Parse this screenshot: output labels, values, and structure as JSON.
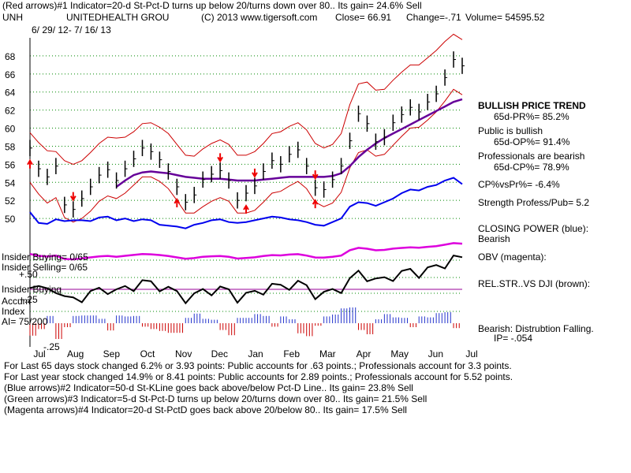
{
  "header": {
    "line1": "(Red arrows)#1 Indicator=20-d St-Pct-D turns up below 20/turns down over 80.. Its gain= 24.6% Sell",
    "symbol": "UNH",
    "company": "UNITEDHEALTH GROU",
    "copyright": "(C) 2013 www.tigersoft.com",
    "close": "Close=  66.91",
    "change": "Change=-.71",
    "volume": "Volume= 54595.52",
    "date_range": "6/ 29/ 12-  7/ 16/ 13"
  },
  "sidebar": {
    "trend_title": "BULLISH PRICE TREND",
    "pr": "65d-PR%= 85.2%",
    "public": "Public is bullish",
    "op": "65d-OP%= 91.4%",
    "professionals": "Professionals are bearish",
    "cp": "65d-CP%= 78.9%",
    "cpvspr": "CP%vsPr%= -6.4%",
    "strength": "Strength Profess/Pub= 5.2",
    "closing_power": "CLOSING POWER (blue):",
    "closing_power_status": "Bearish",
    "obv": "OBV (magenta):",
    "relstr": "REL.STR..VS DJI (brown):",
    "accum": "Bearish: Distrubtion Falling.",
    "ip": "IP= -.054"
  },
  "indicators": {
    "insider_buying": "Insider Buying= 0/65",
    "insider_selling": "Insider Selling= 0/65",
    "plus50": "+.50",
    "insider_buying2": "Insider Buying",
    "accum": "Accum",
    "plus25": "+.25",
    "index": "Index",
    "ai": "AI= 75/200",
    "minus25": "-.25"
  },
  "footer": {
    "line1": "For Last 65 days stock changed  6.2% or  3.93 points:  Public accounts for  .63 points.;  Professionals account for  3.3 points.",
    "line2": "For Last year stock changed  14.9% or  8.41 points:  Public accounts for  2.89 points.;  Professionals account for  5.52 points.",
    "line3": "(Blue arrows)#2 Indicator=50-d St-KLine goes back above/below Pct-D Line.. Its gain= 23.8% Sell",
    "line4": "(Green arrows)#3 Indicator=5-d St-Pct-D turns up below 20/turns down over 80.. Its gain= 21.5% Sell",
    "line5": "(Magenta arrows)#4 Indicator=20-d St-PctD goes back above 20/below 80.. Its gain= 17.5% Sell"
  },
  "colors": {
    "price_bars": "#000000",
    "bands": "#cc0000",
    "ma_long": "#660099",
    "closing_power": "#0000ee",
    "obv": "#dd00dd",
    "accum_pos": "#2233cc",
    "accum_neg": "#cc0000",
    "relstr_line": "#000000",
    "zero_line": "#990099",
    "arrow_red": "#ee0000",
    "grid": "#008800"
  },
  "chart_data": {
    "type": "line",
    "title": "UNITEDHEALTH GROU",
    "symbol": "UNH",
    "x_labels": [
      "Jul",
      "Aug",
      "Sep",
      "Oct",
      "Nov",
      "Dec",
      "Jan",
      "Feb",
      "Mar",
      "Apr",
      "May",
      "Jun",
      "Jul"
    ],
    "y_ticks": [
      50,
      52,
      54,
      56,
      58,
      60,
      62,
      64,
      66,
      68
    ],
    "ylim": [
      48,
      70
    ],
    "grid": true,
    "series": [
      {
        "name": "Close",
        "values": [
          57.8,
          55.5,
          54.6,
          55.8,
          51.5,
          51.0,
          52.2,
          53.5,
          54.8,
          55.4,
          54.2,
          55.5,
          56.6,
          57.8,
          57.4,
          56.5,
          55.2,
          53.5,
          51.8,
          52.6,
          54.3,
          54.9,
          55.3,
          54.2,
          52.0,
          52.8,
          53.6,
          55.2,
          56.4,
          56.0,
          57.1,
          57.6,
          55.8,
          53.4,
          53.2,
          54.3,
          55.8,
          58.6,
          61.6,
          60.5,
          58.5,
          59.0,
          60.6,
          61.5,
          62.3,
          61.8,
          62.9,
          63.8,
          65.6,
          67.6,
          66.9
        ]
      },
      {
        "name": "MA",
        "values": [
          null,
          null,
          null,
          null,
          null,
          null,
          null,
          null,
          null,
          null,
          53.5,
          54.2,
          54.8,
          55.1,
          55.2,
          55.1,
          55.0,
          54.8,
          54.6,
          54.5,
          54.4,
          54.4,
          54.4,
          54.3,
          54.2,
          54.2,
          54.2,
          54.3,
          54.4,
          54.5,
          54.6,
          54.6,
          54.6,
          54.6,
          54.6,
          54.7,
          55.0,
          55.8,
          56.8,
          57.6,
          58.3,
          58.9,
          59.4,
          59.9,
          60.4,
          60.9,
          61.4,
          61.9,
          62.4,
          62.9,
          63.2
        ]
      },
      {
        "name": "Upper Band",
        "values": [
          59.5,
          58.4,
          57.5,
          57.4,
          56.4,
          56.0,
          56.4,
          57.3,
          58.3,
          59.0,
          58.9,
          59.0,
          59.6,
          60.5,
          60.6,
          60.1,
          59.4,
          58.2,
          57.0,
          56.9,
          57.7,
          58.3,
          58.7,
          58.2,
          57.0,
          57.0,
          57.4,
          58.3,
          59.4,
          59.6,
          60.2,
          60.6,
          59.8,
          58.3,
          57.8,
          58.2,
          59.4,
          62.6,
          64.9,
          65.1,
          64.2,
          64.3,
          65.3,
          66.2,
          67.0,
          67.0,
          67.8,
          68.6,
          69.6,
          70.4,
          69.8
        ]
      },
      {
        "name": "Lower Band",
        "values": [
          54.0,
          52.7,
          51.7,
          52.3,
          50.1,
          49.6,
          50.0,
          50.8,
          51.9,
          52.5,
          52.2,
          52.8,
          53.7,
          54.6,
          54.6,
          54.1,
          53.3,
          52.0,
          50.6,
          50.6,
          51.3,
          51.9,
          52.3,
          51.9,
          50.6,
          50.6,
          50.9,
          51.8,
          52.8,
          53.0,
          53.6,
          54.1,
          53.3,
          51.8,
          51.3,
          51.7,
          52.9,
          55.6,
          57.3,
          57.6,
          56.9,
          57.1,
          58.1,
          59.1,
          60.0,
          60.1,
          60.9,
          61.8,
          63.0,
          64.3,
          63.7
        ]
      },
      {
        "name": "Closing Power",
        "values": [
          50.7,
          49.5,
          49.4,
          49.9,
          49.7,
          49.8,
          49.8,
          49.7,
          50.1,
          50.2,
          49.8,
          50.0,
          49.7,
          49.9,
          49.8,
          49.3,
          49.2,
          49.1,
          48.9,
          49.3,
          49.5,
          49.8,
          49.9,
          49.6,
          49.5,
          49.6,
          49.8,
          50.0,
          50.2,
          50.1,
          49.9,
          49.8,
          49.6,
          49.3,
          49.2,
          49.6,
          50.0,
          51.3,
          51.8,
          51.7,
          51.4,
          51.8,
          52.2,
          52.8,
          53.2,
          53.1,
          53.5,
          53.7,
          54.2,
          54.5,
          53.8
        ]
      }
    ],
    "arrows_red_down": [
      "Aug",
      "Dec",
      "Jan",
      "Mar"
    ],
    "arrows_red_up": [
      "Jul",
      "Nov",
      "Jan",
      "Mar"
    ]
  }
}
